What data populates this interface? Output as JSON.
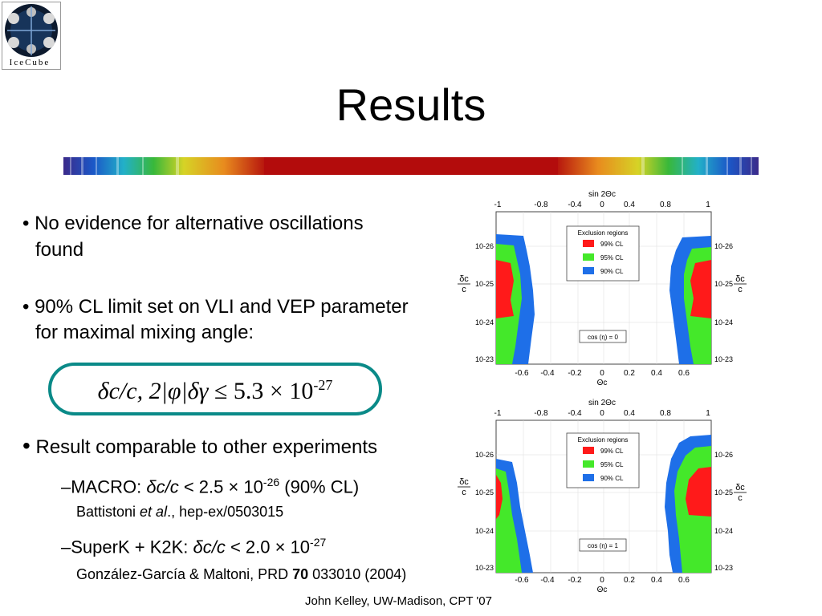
{
  "logo": {
    "label": "IceCube"
  },
  "title": "Results",
  "bullets": {
    "b1_line1": "• No evidence for alternative oscillations",
    "b1_line2": "found",
    "b2_line1": "• 90% CL limit set on VLI and VEP parameter",
    "b2_line2": "for maximal mixing angle:",
    "b3": "Result comparable to other experiments"
  },
  "formula": {
    "lhs": "δc/c, 2|φ|δγ",
    "rel": "≤",
    "mant": "5.3 × 10",
    "exp": "-27"
  },
  "macro": {
    "lead": "–MACRO: ",
    "sym": "δc/c",
    "mid": " < 2.5 × 10",
    "exp": "-26",
    "tail": " (90% CL)",
    "ref_pre": "Battistoni ",
    "ref_it": "et al",
    "ref_post": "., hep-ex/0503015"
  },
  "superk": {
    "lead": "–SuperK + K2K: ",
    "sym": "δc/c",
    "mid": " < 2.0 × 10",
    "exp": "-27",
    "ref_pre": "González-García & Maltoni, PRD ",
    "ref_bold": "70",
    "ref_post": " 033010 (2004)"
  },
  "footer": "John Kelley, UW-Madison, CPT '07",
  "plots": {
    "top_axis_label": "sin 2Θc",
    "bottom_axis_label": "Θc",
    "top_ticks": [
      "-1",
      "-0.8",
      "-0.4",
      "0",
      "0.4",
      "0.8",
      "1"
    ],
    "bottom_ticks": [
      "-0.6",
      "-0.4",
      "-0.2",
      "0",
      "0.2",
      "0.4",
      "0.6"
    ],
    "y_ticks": [
      "10-26",
      "10-25",
      "10-24",
      "10-23"
    ],
    "y_label_num": "δc",
    "y_label_den": "c",
    "legend_title": "Exclusion regions",
    "legend_items": [
      {
        "label": "99% CL",
        "color": "#ff1a1a"
      },
      {
        "label": "95% CL",
        "color": "#44e82a"
      },
      {
        "label": "90% CL",
        "color": "#1e6fe8"
      }
    ],
    "panel1_cos": "cos (η) = 0",
    "panel2_cos": "cos (η) = 1"
  }
}
